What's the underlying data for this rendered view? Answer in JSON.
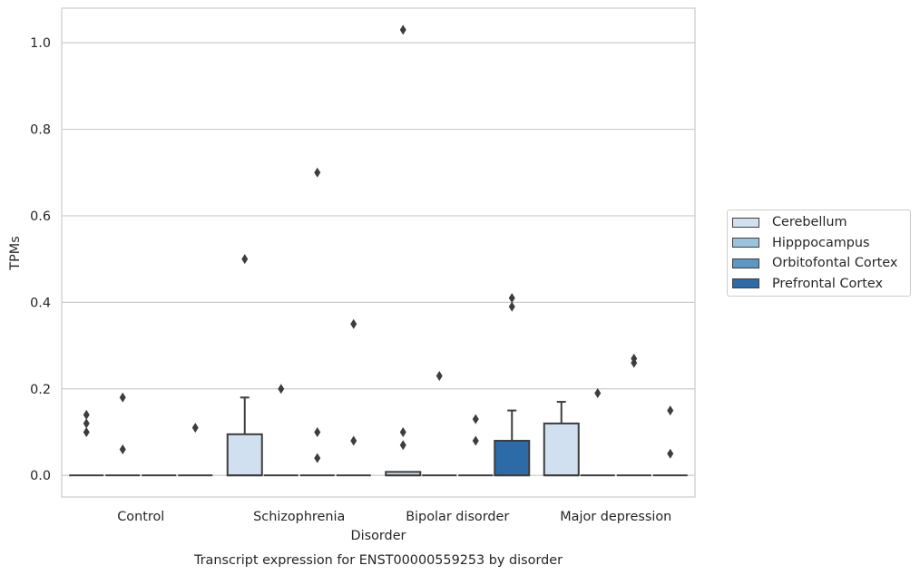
{
  "chart_data": {
    "type": "box",
    "title": "Transcript expression for ENST00000559253 by disorder",
    "xlabel": "Disorder",
    "ylabel": "TPMs",
    "ylim": [
      -0.05,
      1.08
    ],
    "yticks": [
      0.0,
      0.2,
      0.4,
      0.6,
      0.8,
      1.0
    ],
    "ytick_labels": [
      "0.0",
      "0.2",
      "0.4",
      "0.6",
      "0.8",
      "1.0"
    ],
    "grid": true,
    "legend_position": "right",
    "categories": [
      "Control",
      "Schizophrenia",
      "Bipolar disorder",
      "Major depression"
    ],
    "series": [
      {
        "name": "Cerebellum",
        "color": "#d0e0f0",
        "boxes": [
          {
            "category": "Control",
            "q1": 0,
            "median": 0,
            "q3": 0,
            "whisker_low": 0,
            "whisker_high": 0,
            "outliers": [
              0.14,
              0.12,
              0.1
            ]
          },
          {
            "category": "Schizophrenia",
            "q1": 0,
            "median": 0,
            "q3": 0.095,
            "whisker_low": 0,
            "whisker_high": 0.18,
            "outliers": [
              0.5
            ]
          },
          {
            "category": "Bipolar disorder",
            "q1": 0,
            "median": 0,
            "q3": 0.008,
            "whisker_low": 0,
            "whisker_high": 0.008,
            "outliers": [
              1.03,
              0.1,
              0.07
            ]
          },
          {
            "category": "Major depression",
            "q1": 0,
            "median": 0,
            "q3": 0.12,
            "whisker_low": 0,
            "whisker_high": 0.17,
            "outliers": []
          }
        ]
      },
      {
        "name": "Hipppocampus",
        "color": "#9ac3dd",
        "boxes": [
          {
            "category": "Control",
            "q1": 0,
            "median": 0,
            "q3": 0,
            "whisker_low": 0,
            "whisker_high": 0,
            "outliers": [
              0.18,
              0.06
            ]
          },
          {
            "category": "Schizophrenia",
            "q1": 0,
            "median": 0,
            "q3": 0,
            "whisker_low": 0,
            "whisker_high": 0,
            "outliers": [
              0.2
            ]
          },
          {
            "category": "Bipolar disorder",
            "q1": 0,
            "median": 0,
            "q3": 0,
            "whisker_low": 0,
            "whisker_high": 0,
            "outliers": [
              0.23
            ]
          },
          {
            "category": "Major depression",
            "q1": 0,
            "median": 0,
            "q3": 0,
            "whisker_low": 0,
            "whisker_high": 0,
            "outliers": [
              0.19
            ]
          }
        ]
      },
      {
        "name": "Orbitofontal Cortex",
        "color": "#5b98c5",
        "boxes": [
          {
            "category": "Control",
            "q1": 0,
            "median": 0,
            "q3": 0,
            "whisker_low": 0,
            "whisker_high": 0,
            "outliers": []
          },
          {
            "category": "Schizophrenia",
            "q1": 0,
            "median": 0,
            "q3": 0,
            "whisker_low": 0,
            "whisker_high": 0,
            "outliers": [
              0.7,
              0.1,
              0.04
            ]
          },
          {
            "category": "Bipolar disorder",
            "q1": 0,
            "median": 0,
            "q3": 0,
            "whisker_low": 0,
            "whisker_high": 0,
            "outliers": [
              0.13,
              0.08
            ]
          },
          {
            "category": "Major depression",
            "q1": 0,
            "median": 0,
            "q3": 0,
            "whisker_low": 0,
            "whisker_high": 0,
            "outliers": [
              0.27,
              0.26
            ]
          }
        ]
      },
      {
        "name": "Prefrontal Cortex",
        "color": "#2c6aa8",
        "boxes": [
          {
            "category": "Control",
            "q1": 0,
            "median": 0,
            "q3": 0,
            "whisker_low": 0,
            "whisker_high": 0,
            "outliers": [
              0.11
            ]
          },
          {
            "category": "Schizophrenia",
            "q1": 0,
            "median": 0,
            "q3": 0,
            "whisker_low": 0,
            "whisker_high": 0,
            "outliers": [
              0.35,
              0.08
            ]
          },
          {
            "category": "Bipolar disorder",
            "q1": 0,
            "median": 0,
            "q3": 0.08,
            "whisker_low": 0,
            "whisker_high": 0.15,
            "outliers": [
              0.41,
              0.39
            ]
          },
          {
            "category": "Major depression",
            "q1": 0,
            "median": 0,
            "q3": 0,
            "whisker_low": 0,
            "whisker_high": 0,
            "outliers": [
              0.15,
              0.05
            ]
          }
        ]
      }
    ]
  }
}
